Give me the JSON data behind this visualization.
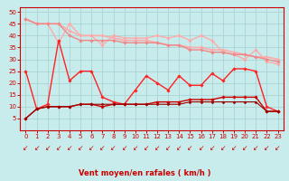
{
  "xlabel": "Vent moyen/en rafales ( km/h )",
  "xlim": [
    -0.5,
    23.5
  ],
  "ylim": [
    0,
    52
  ],
  "yticks": [
    5,
    10,
    15,
    20,
    25,
    30,
    35,
    40,
    45,
    50
  ],
  "xticks": [
    0,
    1,
    2,
    3,
    4,
    5,
    6,
    7,
    8,
    9,
    10,
    11,
    12,
    13,
    14,
    15,
    16,
    17,
    18,
    19,
    20,
    21,
    22,
    23
  ],
  "background_color": "#c8ecec",
  "grid_color": "#aad4d4",
  "spine_color": "#cc0000",
  "tick_color": "#cc0000",
  "lines": [
    {
      "y": [
        47,
        45,
        45,
        37,
        45,
        40,
        40,
        36,
        40,
        39,
        39,
        39,
        40,
        39,
        40,
        38,
        40,
        38,
        33,
        32,
        30,
        34,
        29,
        28
      ],
      "color": "#ffaaaa",
      "lw": 1.0,
      "marker": "D",
      "ms": 1.8
    },
    {
      "y": [
        47,
        45,
        45,
        45,
        42,
        40,
        40,
        40,
        39,
        38,
        38,
        38,
        37,
        36,
        36,
        35,
        35,
        34,
        34,
        33,
        32,
        31,
        31,
        30
      ],
      "color": "#ffaaaa",
      "lw": 1.2,
      "marker": "D",
      "ms": 1.8
    },
    {
      "y": [
        47,
        45,
        45,
        45,
        40,
        38,
        38,
        38,
        38,
        37,
        37,
        37,
        37,
        36,
        36,
        34,
        34,
        33,
        33,
        32,
        32,
        31,
        30,
        29
      ],
      "color": "#ee8888",
      "lw": 1.0,
      "marker": "D",
      "ms": 1.8
    },
    {
      "y": [
        25,
        9,
        11,
        38,
        21,
        25,
        25,
        14,
        12,
        11,
        17,
        23,
        20,
        17,
        23,
        19,
        19,
        24,
        21,
        26,
        26,
        25,
        10,
        8
      ],
      "color": "#ff2222",
      "lw": 1.0,
      "marker": "D",
      "ms": 1.8
    },
    {
      "y": [
        5,
        9,
        10,
        10,
        10,
        11,
        11,
        10,
        11,
        11,
        11,
        11,
        12,
        12,
        12,
        13,
        13,
        13,
        14,
        14,
        14,
        14,
        8,
        8
      ],
      "color": "#cc0000",
      "lw": 1.0,
      "marker": "D",
      "ms": 1.8
    },
    {
      "y": [
        5,
        9,
        10,
        10,
        10,
        11,
        11,
        11,
        11,
        11,
        11,
        11,
        11,
        11,
        11,
        12,
        12,
        12,
        12,
        12,
        12,
        12,
        8,
        8
      ],
      "color": "#990000",
      "lw": 0.8,
      "marker": "D",
      "ms": 1.5
    }
  ],
  "arrow_color": "#cc0000",
  "arrow_fontsize": 5.5,
  "xlabel_fontsize": 6.0,
  "tick_labelsize": 5.0
}
